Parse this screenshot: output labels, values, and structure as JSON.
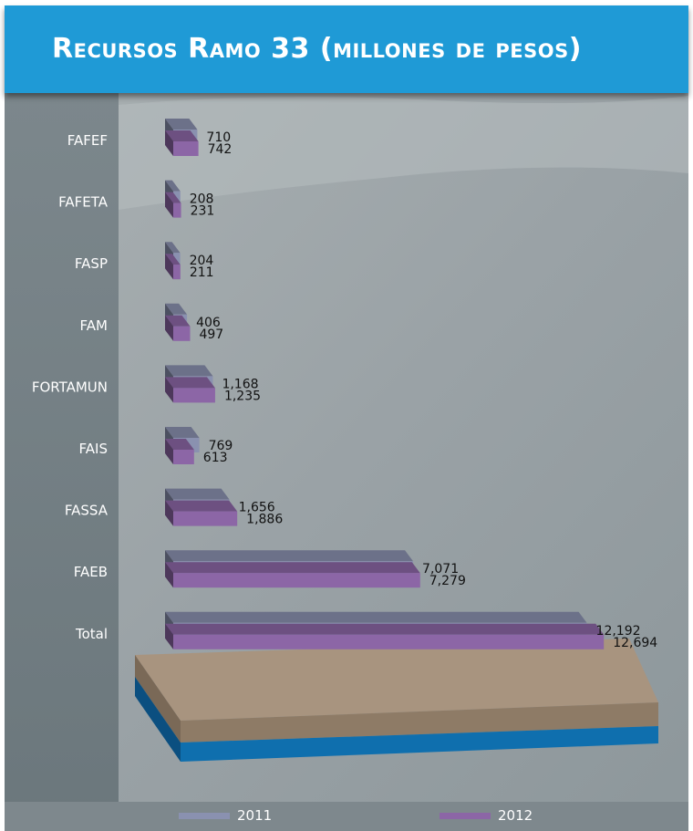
{
  "title": "Recursos Ramo 33 (millones de pesos)",
  "colors": {
    "header": "#1f9ad6",
    "series_2011": "#8a91b0",
    "series_2012": "#8c66a6",
    "base_top": "#a8947f",
    "base_side": "#0f6fae"
  },
  "chart_data": {
    "type": "bar",
    "orientation": "horizontal",
    "title": "Recursos Ramo 33 (millones de pesos)",
    "categories": [
      "FAFEF",
      "FAFETA",
      "FASP",
      "FAM",
      "FORTAMUN",
      "FAIS",
      "FASSA",
      "FAEB",
      "Total"
    ],
    "series": [
      {
        "name": "2011",
        "values": [
          710,
          208,
          204,
          406,
          1168,
          769,
          1656,
          7071,
          12192
        ],
        "labels": [
          "710",
          "208",
          "204",
          "406",
          "1,168",
          "769",
          "1,656",
          "7,071",
          "12,192"
        ]
      },
      {
        "name": "2012",
        "values": [
          742,
          231,
          211,
          497,
          1235,
          613,
          1886,
          7279,
          12694
        ],
        "labels": [
          "742",
          "231",
          "211",
          "497",
          "1,235",
          "613",
          "1,886",
          "7,279",
          "12,694"
        ]
      }
    ],
    "legend": [
      "2011",
      "2012"
    ],
    "legend_position": "bottom"
  }
}
